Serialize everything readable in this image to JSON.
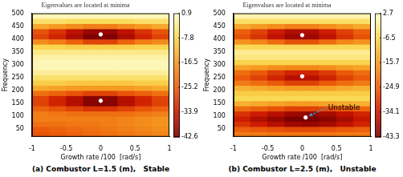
{
  "chart_data": [
    {
      "type": "heatmap",
      "title": "Eigenvalues are located at minima",
      "x_label": "Growth rate /100  [rad/s]",
      "y_label": "Frequency",
      "caption": "(a) Combustor L=1.5 (m),   Stable",
      "grid": false,
      "xlim": [
        -1,
        1
      ],
      "xticks": [
        -1,
        -0.5,
        0,
        0.5,
        1
      ],
      "ylim": [
        20,
        500
      ],
      "yticks": [
        50,
        100,
        150,
        200,
        250,
        300,
        350,
        400,
        450,
        500
      ],
      "xbins": [
        -1,
        -0.75,
        -0.5,
        -0.25,
        0,
        0.25,
        0.5,
        0.75,
        1
      ],
      "ybins": [
        20,
        40,
        60,
        80,
        100,
        120,
        140,
        160,
        180,
        200,
        220,
        240,
        260,
        280,
        300,
        320,
        340,
        360,
        380,
        400,
        420,
        440,
        460,
        480,
        500
      ],
      "cells": [
        [
          -26,
          -25,
          -24,
          -23,
          -22,
          -21,
          -20,
          -19
        ],
        [
          -25,
          -24,
          -23,
          -22,
          -21,
          -20,
          -19,
          -18
        ],
        [
          -22,
          -22,
          -21,
          -21,
          -20,
          -19,
          -18,
          -17
        ],
        [
          -20,
          -20,
          -20,
          -20,
          -20,
          -19,
          -18,
          -17
        ],
        [
          -20,
          -21,
          -22,
          -22,
          -22,
          -22,
          -21,
          -20
        ],
        [
          -24,
          -26,
          -28,
          -30,
          -30,
          -28,
          -26,
          -24
        ],
        [
          -28,
          -32,
          -36,
          -41,
          -41,
          -36,
          -32,
          -28
        ],
        [
          -28,
          -32,
          -36,
          -41,
          -41,
          -36,
          -32,
          -28
        ],
        [
          -22,
          -24,
          -26,
          -28,
          -28,
          -26,
          -24,
          -22
        ],
        [
          -14,
          -15,
          -16,
          -16,
          -16,
          -16,
          -15,
          -14
        ],
        [
          -9,
          -9,
          -10,
          -10,
          -10,
          -10,
          -9,
          -9
        ],
        [
          -6,
          -6,
          -6,
          -6,
          -6,
          -6,
          -6,
          -6
        ],
        [
          -3,
          -3,
          -3,
          -3,
          -3,
          -3,
          -3,
          -3
        ],
        [
          -1,
          -1,
          -1,
          -1,
          -1,
          -1,
          -1,
          -1
        ],
        [
          -1,
          -1,
          -1,
          -1,
          -1,
          -1,
          -1,
          -1
        ],
        [
          -2,
          -2,
          -2,
          -2,
          -2,
          -2,
          -2,
          -2
        ],
        [
          -4,
          -4,
          -4,
          -4,
          -4,
          -4,
          -4,
          -4
        ],
        [
          -8,
          -8,
          -9,
          -9,
          -9,
          -9,
          -8,
          -8
        ],
        [
          -18,
          -20,
          -24,
          -28,
          -28,
          -24,
          -20,
          -18
        ],
        [
          -28,
          -32,
          -37,
          -42,
          -42,
          -37,
          -32,
          -28
        ],
        [
          -26,
          -30,
          -35,
          -39,
          -39,
          -35,
          -30,
          -26
        ],
        [
          -14,
          -16,
          -18,
          -20,
          -20,
          -18,
          -16,
          -14
        ],
        [
          -6,
          -6,
          -7,
          -7,
          -7,
          -7,
          -6,
          -6
        ],
        [
          -1,
          -1,
          -1,
          -1,
          -1,
          -1,
          -1,
          -1
        ]
      ],
      "colorbar": {
        "lim": [
          -42.6,
          0.9
        ],
        "ticks": [
          0.9,
          -7.8,
          -16.5,
          -25.2,
          -33.9,
          -42.6
        ]
      },
      "points": {
        "x": [
          0,
          0
        ],
        "y": [
          418,
          160
        ],
        "color": "#ffffff"
      }
    },
    {
      "type": "heatmap",
      "title": "Eigenvalues are located at minima",
      "x_label": "Growth rate /100  [rad/s]",
      "y_label": "Frequency",
      "caption": "(b) Combustor L=2.5 (m),   Unstable",
      "grid": false,
      "xlim": [
        -1,
        1
      ],
      "xticks": [
        -1,
        -0.5,
        0,
        0.5,
        1
      ],
      "ylim": [
        20,
        500
      ],
      "yticks": [
        50,
        100,
        150,
        200,
        250,
        300,
        350,
        400,
        450,
        500
      ],
      "xbins": [
        -1,
        -0.75,
        -0.5,
        -0.25,
        0,
        0.25,
        0.5,
        0.75,
        1
      ],
      "ybins": [
        20,
        40,
        60,
        80,
        100,
        120,
        140,
        160,
        180,
        200,
        220,
        240,
        260,
        280,
        300,
        320,
        340,
        360,
        380,
        400,
        420,
        440,
        460,
        480,
        500
      ],
      "cells": [
        [
          -20,
          -20,
          -21,
          -21,
          -21,
          -21,
          -20,
          -20
        ],
        [
          -24,
          -25,
          -26,
          -27,
          -27,
          -26,
          -25,
          -24
        ],
        [
          -30,
          -33,
          -36,
          -39,
          -40,
          -38,
          -35,
          -32
        ],
        [
          -33,
          -37,
          -40,
          -43,
          -43,
          -41,
          -38,
          -34
        ],
        [
          -30,
          -33,
          -36,
          -39,
          -40,
          -38,
          -35,
          -32
        ],
        [
          -22,
          -24,
          -26,
          -28,
          -28,
          -27,
          -25,
          -23
        ],
        [
          -12,
          -13,
          -14,
          -15,
          -15,
          -14,
          -13,
          -12
        ],
        [
          -6,
          -6,
          -6,
          -6,
          -6,
          -6,
          -6,
          -6
        ],
        [
          -8,
          -8,
          -8,
          -8,
          -8,
          -8,
          -8,
          -8
        ],
        [
          -12,
          -13,
          -14,
          -15,
          -15,
          -14,
          -13,
          -12
        ],
        [
          -20,
          -22,
          -25,
          -28,
          -28,
          -25,
          -22,
          -20
        ],
        [
          -25,
          -28,
          -32,
          -36,
          -36,
          -32,
          -28,
          -25
        ],
        [
          -22,
          -25,
          -29,
          -32,
          -32,
          -29,
          -25,
          -22
        ],
        [
          -14,
          -15,
          -17,
          -18,
          -18,
          -17,
          -15,
          -14
        ],
        [
          -7,
          -7,
          -7,
          -7,
          -7,
          -7,
          -7,
          -7
        ],
        [
          -3,
          -3,
          -3,
          -3,
          -3,
          -3,
          -3,
          -3
        ],
        [
          -2,
          -2,
          -2,
          -2,
          -2,
          -2,
          -2,
          -2
        ],
        [
          -6,
          -6,
          -6,
          -6,
          -6,
          -6,
          -6,
          -6
        ],
        [
          -16,
          -18,
          -22,
          -26,
          -26,
          -22,
          -18,
          -16
        ],
        [
          -26,
          -30,
          -35,
          -39,
          -39,
          -35,
          -30,
          -26
        ],
        [
          -24,
          -28,
          -33,
          -37,
          -37,
          -33,
          -28,
          -24
        ],
        [
          -13,
          -15,
          -17,
          -19,
          -19,
          -17,
          -15,
          -13
        ],
        [
          -5,
          -5,
          -5,
          -5,
          -5,
          -5,
          -5,
          -5
        ],
        [
          0,
          0,
          0,
          0,
          0,
          0,
          0,
          0
        ]
      ],
      "colorbar": {
        "lim": [
          -43.3,
          2.7
        ],
        "ticks": [
          2.7,
          -6.5,
          -15.7,
          -24.9,
          -34.1,
          -43.3
        ]
      },
      "points": {
        "x": [
          0,
          0,
          0.05
        ],
        "y": [
          415,
          255,
          95
        ],
        "color": "#ffffff"
      },
      "annotations": [
        {
          "text": "Unstable",
          "x": 0.05,
          "y": 95
        }
      ]
    }
  ]
}
